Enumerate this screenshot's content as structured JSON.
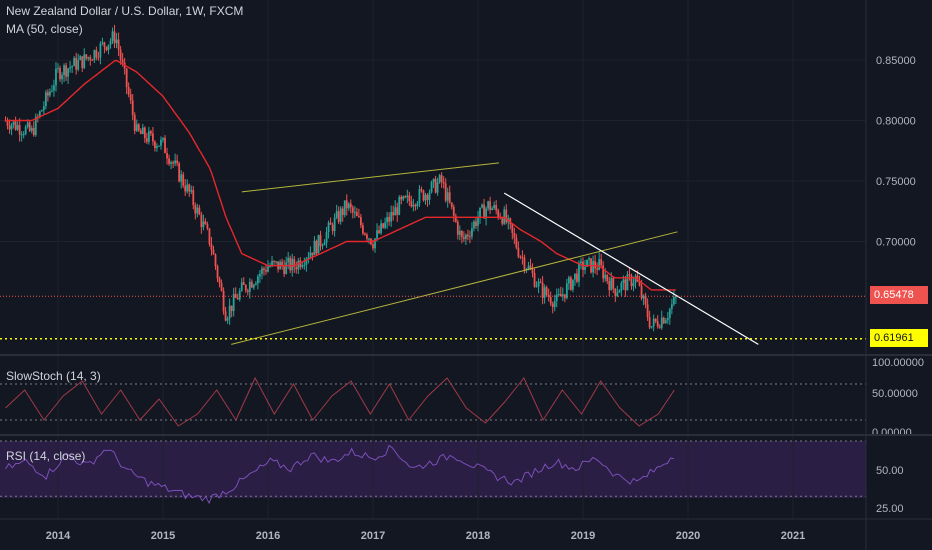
{
  "chart_data": [
    {
      "type": "line",
      "title": "New Zealand Dollar / U.S. Dollar, 1W, FXCM",
      "subtitle": "MA (50, close)",
      "x_dates": [
        "2013.50",
        "2013.75",
        "2014.00",
        "2014.25",
        "2014.40",
        "2014.55",
        "2014.75",
        "2015.00",
        "2015.25",
        "2015.45",
        "2015.60",
        "2015.75",
        "2016.00",
        "2016.25",
        "2016.50",
        "2016.75",
        "2017.00",
        "2017.25",
        "2017.50",
        "2017.65",
        "2017.85",
        "2018.00",
        "2018.10",
        "2018.25",
        "2018.40",
        "2018.60",
        "2018.75",
        "2019.00",
        "2019.15",
        "2019.30",
        "2019.50",
        "2019.65",
        "2019.80",
        "2019.90"
      ],
      "close": [
        0.8,
        0.79,
        0.84,
        0.85,
        0.86,
        0.87,
        0.79,
        0.78,
        0.74,
        0.7,
        0.64,
        0.66,
        0.68,
        0.68,
        0.7,
        0.73,
        0.7,
        0.73,
        0.74,
        0.75,
        0.7,
        0.72,
        0.73,
        0.72,
        0.69,
        0.66,
        0.65,
        0.68,
        0.68,
        0.66,
        0.67,
        0.63,
        0.64,
        0.65478
      ],
      "ma50": [
        0.8,
        0.8,
        0.81,
        0.83,
        0.84,
        0.85,
        0.84,
        0.82,
        0.79,
        0.76,
        0.72,
        0.69,
        0.68,
        0.68,
        0.69,
        0.7,
        0.7,
        0.71,
        0.72,
        0.72,
        0.72,
        0.72,
        0.72,
        0.72,
        0.71,
        0.7,
        0.69,
        0.68,
        0.68,
        0.67,
        0.67,
        0.66,
        0.66,
        0.66
      ],
      "y_ticks": [
        "0.85000",
        "0.80000",
        "0.75000",
        "0.70000"
      ],
      "x_ticks": [
        "2014",
        "2015",
        "2016",
        "2017",
        "2018",
        "2019",
        "2020",
        "2021"
      ],
      "last_price_label": "0.65478",
      "support_label": "0.61961",
      "colors": {
        "up": "#26a69a",
        "down": "#ef5350",
        "ma": "#e5282b",
        "trend": "#ffffff",
        "channel": "#b5b53a",
        "support": "#ffff00"
      }
    },
    {
      "type": "line",
      "title": "SlowStoch (14, 3)",
      "values": [
        40,
        70,
        20,
        60,
        85,
        30,
        70,
        20,
        55,
        10,
        30,
        70,
        20,
        90,
        30,
        80,
        20,
        60,
        85,
        30,
        80,
        20,
        60,
        90,
        40,
        15,
        50,
        90,
        20,
        70,
        30,
        85,
        40,
        10,
        30,
        78
      ],
      "y_ticks": [
        "100.00000",
        "50.00000",
        "0.00000"
      ],
      "levels": [
        80,
        20
      ],
      "color": "#a13a48"
    },
    {
      "type": "line",
      "title": "RSI (14, close)",
      "values": [
        50,
        55,
        45,
        60,
        52,
        65,
        48,
        40,
        35,
        30,
        28,
        35,
        45,
        55,
        50,
        60,
        55,
        62,
        58,
        65,
        50,
        55,
        60,
        52,
        45,
        40,
        48,
        55,
        50,
        58,
        45,
        40,
        50,
        62
      ],
      "y_ticks": [
        "50.00",
        "25.00"
      ],
      "levels": [
        70,
        30
      ],
      "color": "#7b4fb8",
      "band": "#2a1e44"
    }
  ]
}
